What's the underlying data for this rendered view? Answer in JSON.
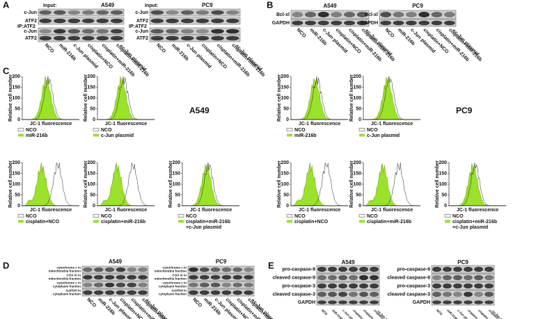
{
  "lanes": [
    "NCO",
    "miR-216b",
    "c-Jun plasmid",
    "cisplatin+NCO",
    "cisplatin+miR-216b",
    [
      "cisplatin+miR-216b",
      "+c-Jun plasmid"
    ]
  ],
  "panel_a": {
    "label": "A",
    "input": "Input:",
    "ip": "IP:ATF2",
    "cells": [
      "A549",
      "PC9"
    ],
    "rows": [
      "c-Jun",
      "ATF2"
    ]
  },
  "panel_b": {
    "label": "B",
    "cells": [
      "A549",
      "PC9"
    ],
    "rows": [
      "Bcl-xl",
      "GAPDH"
    ]
  },
  "panel_c": {
    "label": "C",
    "cells": [
      "A549",
      "PC9"
    ],
    "y_label": "Relative cell number",
    "x_label": "JC-1 fluorescence",
    "yticks": [
      0,
      50,
      100,
      150,
      200
    ],
    "control": "NCO"
  },
  "panel_d": {
    "label": "D",
    "cells": [
      "A549",
      "PC9"
    ],
    "rows": [
      [
        "cytochrome c in",
        "mitochondria fraction"
      ],
      [
        "COX IV in",
        "mitochondria fraction"
      ],
      [
        "cytochrome c in",
        "cytoplasm fraction"
      ],
      [
        "GAPDH in",
        "cytoplasm fraction"
      ]
    ]
  },
  "panel_e": {
    "label": "E",
    "cells": [
      "A549",
      "PC9"
    ],
    "rows": [
      "pro-caspase-9",
      "cleaved caspase-9",
      "pro-caspase-3",
      "cleaved caspase-3",
      "GAPDH"
    ]
  }
}
